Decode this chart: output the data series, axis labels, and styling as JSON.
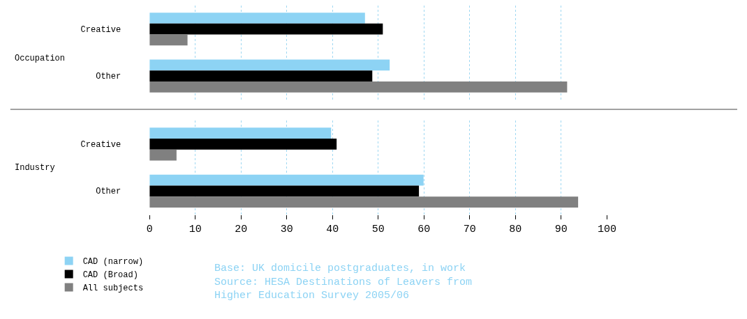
{
  "chart_data": [
    {
      "type": "bar",
      "orientation": "horizontal",
      "ylabel": "Occupation",
      "categories": [
        "Creative",
        "Other"
      ],
      "series": [
        {
          "color": "#8dd3f4",
          "values": [
            47.1,
            52.5
          ]
        },
        {
          "color": "#000000",
          "values": [
            51.0,
            48.7
          ]
        },
        {
          "color": "#808080",
          "values": [
            8.3,
            91.3
          ]
        }
      ],
      "xlim": [
        0,
        100
      ],
      "xticks": [
        0,
        10,
        20,
        30,
        40,
        50,
        60,
        70,
        80,
        90,
        100
      ],
      "grid": "x",
      "tick_labels": "y",
      "legend": false
    },
    {
      "type": "bar",
      "orientation": "horizontal",
      "ylabel": "Industry",
      "categories": [
        "Creative",
        "Other"
      ],
      "series": [
        {
          "name": "CAD (narrow)",
          "color": "#8dd3f4",
          "values": [
            39.7,
            59.9
          ]
        },
        {
          "name": "CAD (Broad)",
          "color": "#000000",
          "values": [
            40.9,
            58.9
          ]
        },
        {
          "name": "All subjects",
          "color": "#808080",
          "values": [
            5.9,
            93.7
          ]
        }
      ],
      "xlim": [
        0,
        100
      ],
      "xticks": [
        0,
        10,
        20,
        30,
        40,
        50,
        60,
        70,
        80,
        90,
        100
      ],
      "grid": "x",
      "legend": "bottom left",
      "annotations": [
        "Base: UK domicile postgraduates, in work\nSource: HESA Destinations of Leavers from\nHigher Education Survey 2005/06"
      ]
    }
  ]
}
